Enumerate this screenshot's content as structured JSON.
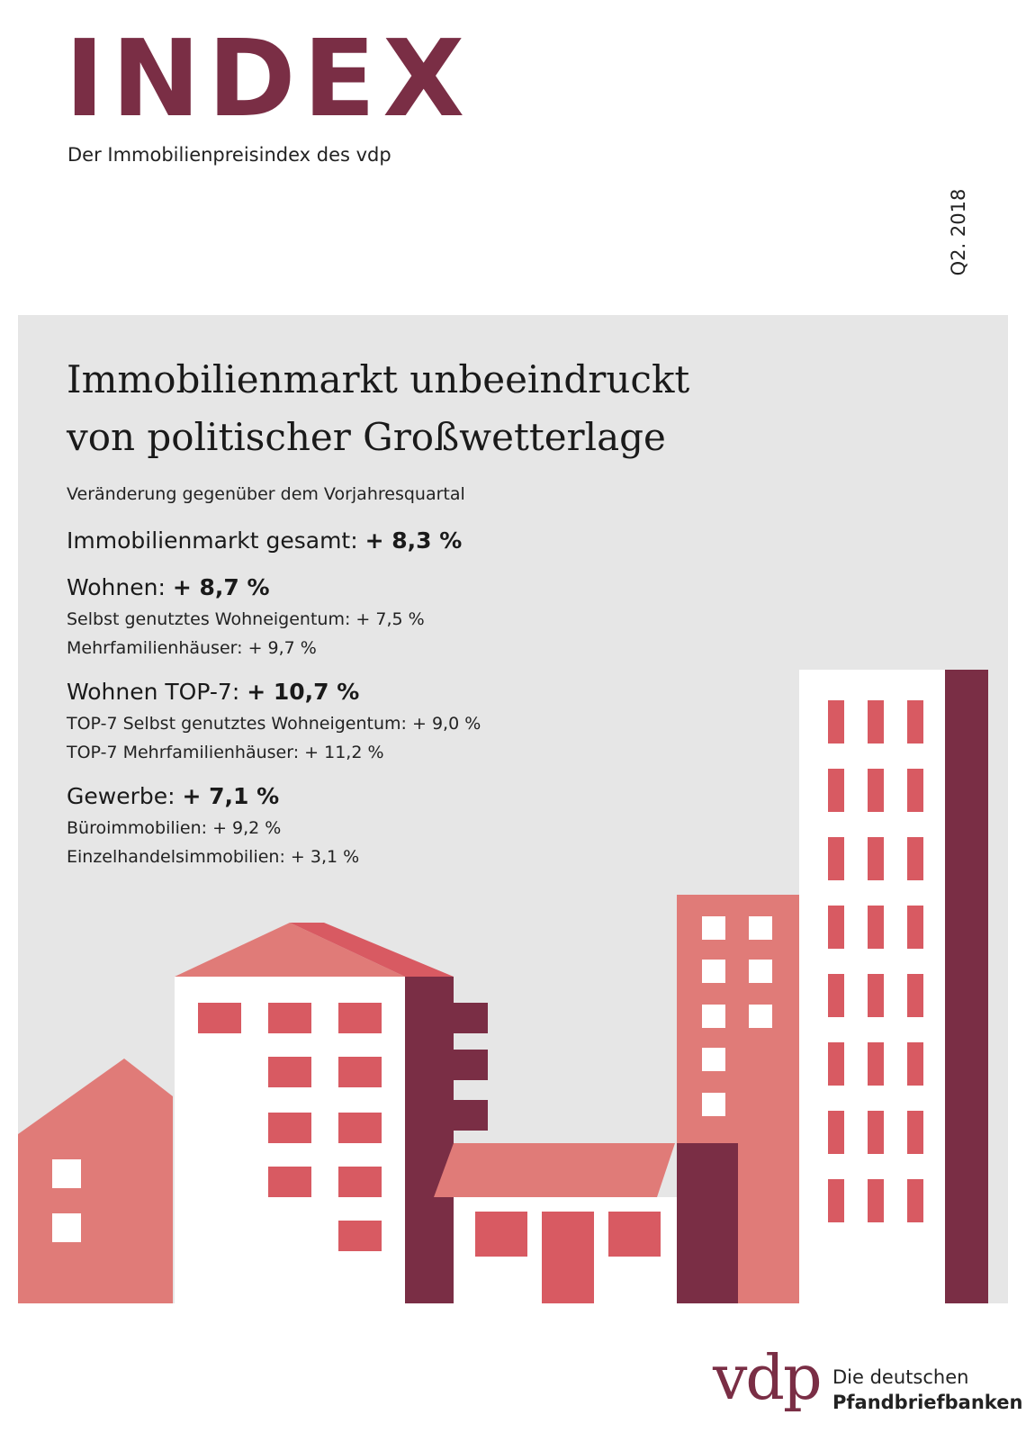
{
  "header": {
    "title": "INDEX",
    "subtitle": "Der Immobilienpreisindex des vdp",
    "quarter": "Q2. 2018"
  },
  "headline": {
    "line1": "Immobilienmarkt unbeeindruckt",
    "line2": "von politischer Großwetterlage"
  },
  "intro": "Veränderung gegenüber dem Vorjahresquartal",
  "stats": {
    "total": {
      "label": "Immobilienmarkt gesamt:",
      "value": "+ 8,3 %"
    },
    "wohnen": {
      "label": "Wohnen:",
      "value": "+ 8,7 %",
      "sub1": "Selbst genutztes Wohneigentum: + 7,5 %",
      "sub2": "Mehrfamilienhäuser: + 9,7 %"
    },
    "top7": {
      "label": "Wohnen TOP-7:",
      "value": "+ 10,7 %",
      "sub1": "TOP-7 Selbst genutztes Wohneigentum: + 9,0 %",
      "sub2": "TOP-7 Mehrfamilienhäuser: + 11,2 %"
    },
    "gewerbe": {
      "label": "Gewerbe:",
      "value": "+ 7,1 %",
      "sub1": "Büroimmobilien: + 9,2 %",
      "sub2": "Einzelhandelsimmobilien: + 3,1 %"
    }
  },
  "logo": {
    "wordmark": "vdp",
    "line1": "Die deutschen",
    "line2": "Pfandbriefbanken"
  },
  "colors": {
    "brand": "#7a2e45",
    "salmon": "#e07b78",
    "red": "#d85a62",
    "panel": "#e6e6e6"
  }
}
